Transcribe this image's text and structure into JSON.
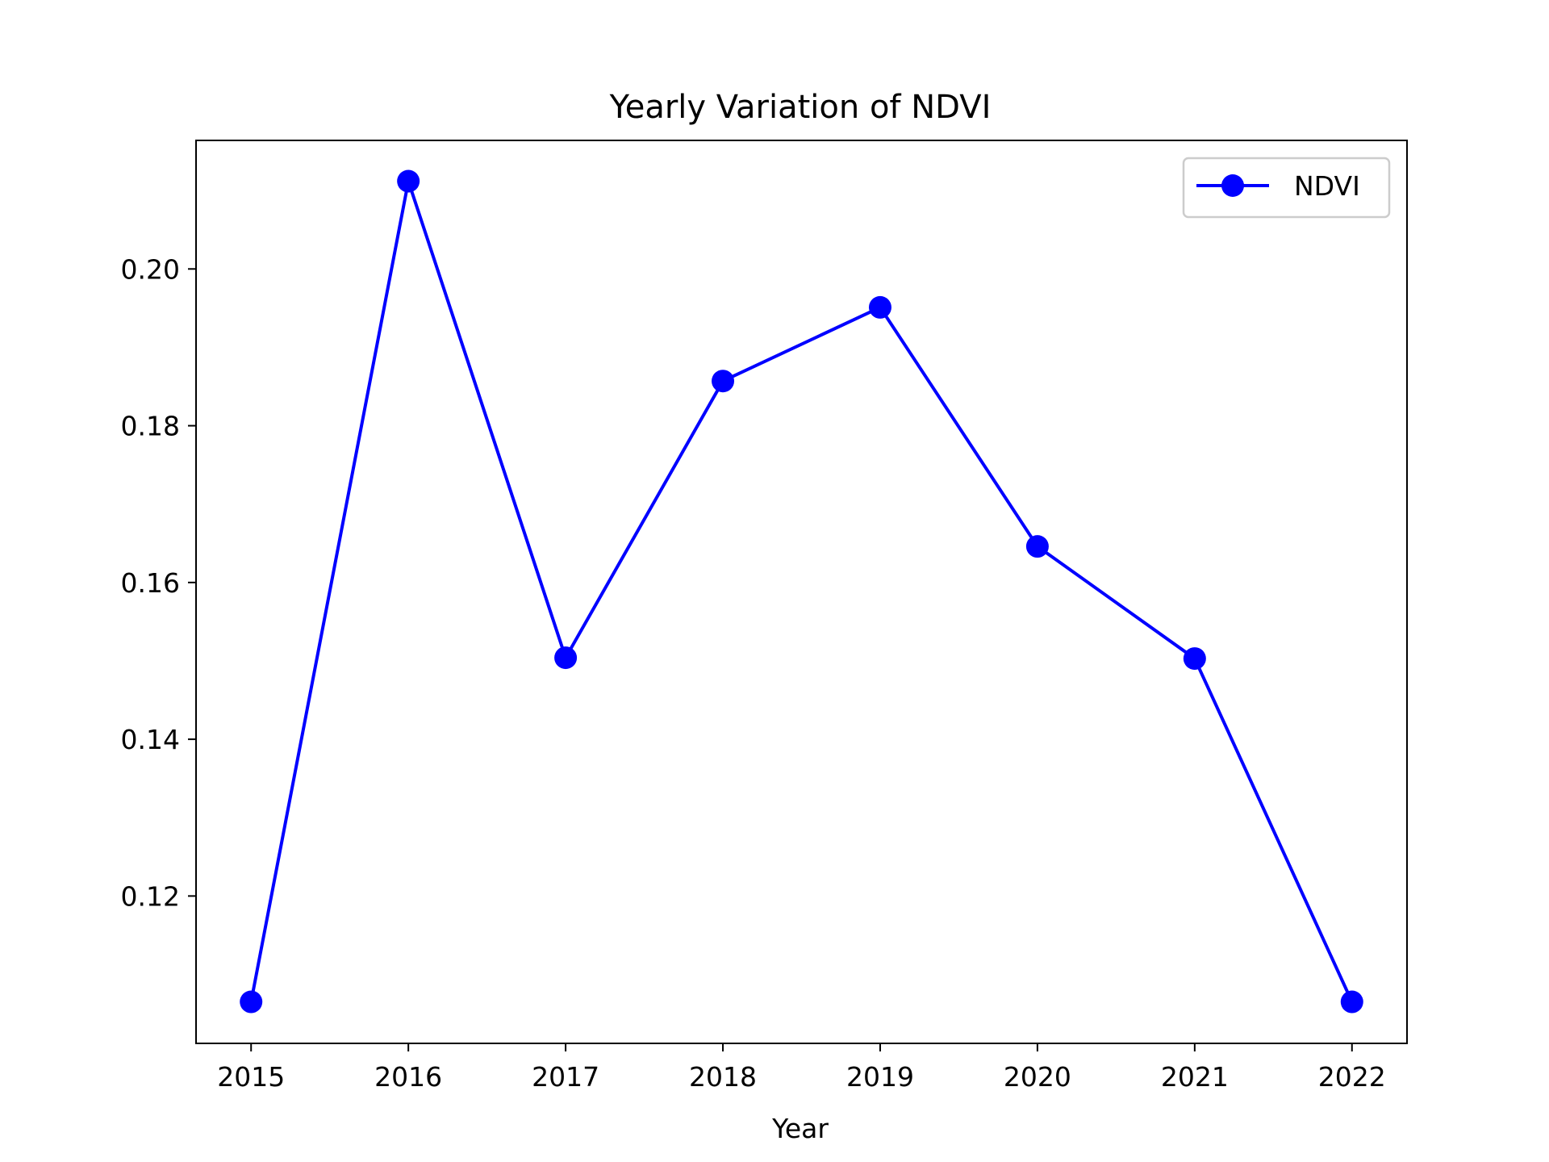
{
  "chart_data": {
    "type": "line",
    "title": "Yearly Variation of NDVI",
    "xlabel": "Year",
    "ylabel": "",
    "x": [
      2015,
      2016,
      2017,
      2018,
      2019,
      2020,
      2021,
      2022
    ],
    "x_tick_labels": [
      "2015",
      "2016",
      "2017",
      "2018",
      "2019",
      "2020",
      "2021",
      "2022"
    ],
    "series": [
      {
        "name": "NDVI",
        "color": "#0000ff",
        "marker": "circle",
        "values": [
          0.1065,
          0.2112,
          0.1504,
          0.1857,
          0.1951,
          0.1646,
          0.1503,
          0.1065
        ]
      }
    ],
    "y_ticks": [
      0.12,
      0.14,
      0.16,
      0.18,
      0.2
    ],
    "y_tick_labels": [
      "0.12",
      "0.14",
      "0.16",
      "0.18",
      "0.20"
    ],
    "xlim": [
      2014.65,
      2022.35
    ],
    "ylim": [
      0.1012,
      0.2164
    ],
    "grid": false,
    "legend": {
      "position": "top-right",
      "entries": [
        "NDVI"
      ]
    }
  }
}
